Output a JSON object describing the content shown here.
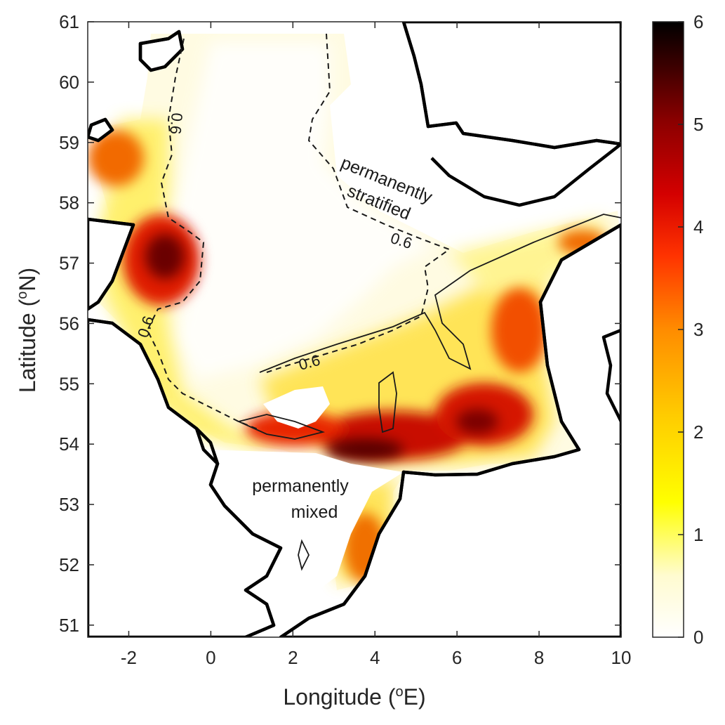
{
  "chart_data": {
    "type": "heatmap",
    "title": "",
    "xlabel": "Longitude (",
    "xlabel_sup": "o",
    "xlabel_end": "E)",
    "ylabel": "Latitude (",
    "ylabel_sup": "o",
    "ylabel_end": "N)",
    "xlim": [
      -3,
      10
    ],
    "ylim": [
      50.8,
      61
    ],
    "xticks": [
      -2,
      0,
      2,
      4,
      6,
      8,
      10
    ],
    "yticks": [
      51,
      52,
      53,
      54,
      55,
      56,
      57,
      58,
      59,
      60,
      61
    ],
    "colorbar": {
      "range": [
        0,
        6
      ],
      "ticks": [
        0,
        1,
        2,
        3,
        4,
        5,
        6
      ],
      "colormap": "hot (reversed)",
      "colors": [
        "#ffffff",
        "#fffbd0",
        "#ffff00",
        "#ffcc00",
        "#ff8c00",
        "#ff3300",
        "#d40000",
        "#8a0000",
        "#3a0000",
        "#000000"
      ]
    },
    "contour": {
      "level": 0.6,
      "labels": [
        "0.6",
        "0.6",
        "0.6",
        "0.6"
      ]
    },
    "annotations": [
      "permanently stratified",
      "permanently mixed"
    ],
    "annotation_lines": {
      "stratified": [
        "permanently",
        "stratified"
      ],
      "mixed": [
        "permanently",
        "mixed"
      ]
    },
    "hotspots": [
      {
        "lon": -1.1,
        "lat": 57.2,
        "value": 5.6
      },
      {
        "lon": 3.7,
        "lat": 53.9,
        "value": 5.6
      },
      {
        "lon": 6.6,
        "lat": 54.4,
        "value": 4.8
      },
      {
        "lon": -2.4,
        "lat": 58.8,
        "value": 3.6
      },
      {
        "lon": 1.7,
        "lat": 54.2,
        "value": 4.2
      },
      {
        "lon": 4.2,
        "lat": 52.2,
        "value": 3.2
      }
    ]
  }
}
